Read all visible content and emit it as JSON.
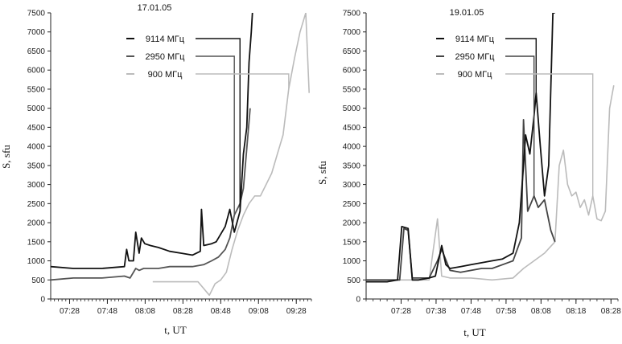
{
  "chart_data": [
    {
      "type": "line",
      "title": "17.01.05",
      "xlabel": "t, UT",
      "ylabel": "S, sfu",
      "ylim": [
        0,
        7500
      ],
      "yticks": [
        0,
        500,
        1000,
        1500,
        2000,
        2500,
        3000,
        3500,
        4000,
        4500,
        5000,
        5500,
        6000,
        6500,
        7000,
        7500
      ],
      "xlim": [
        7.3,
        9.6
      ],
      "xticks": [
        7.4667,
        7.8,
        8.1333,
        8.4667,
        8.8,
        9.1333,
        9.4667
      ],
      "xtick_labels": [
        "07:28",
        "07:48",
        "08:08",
        "08:28",
        "08:48",
        "09:08",
        "09:28"
      ],
      "legend_position": "top-center",
      "series": [
        {
          "name": "9114 МГц",
          "color": "#111111",
          "x": [
            7.3,
            7.5,
            7.75,
            7.95,
            7.97,
            7.99,
            8.03,
            8.05,
            8.08,
            8.1,
            8.13,
            8.18,
            8.25,
            8.35,
            8.45,
            8.55,
            8.62,
            8.63,
            8.65,
            8.72,
            8.76,
            8.8,
            8.84,
            8.88,
            8.92,
            8.97,
            9.0,
            9.03,
            9.05,
            9.07,
            9.08
          ],
          "values": [
            850,
            800,
            800,
            850,
            1300,
            1000,
            1000,
            1750,
            1200,
            1600,
            1450,
            1400,
            1350,
            1250,
            1200,
            1150,
            1250,
            2350,
            1400,
            1450,
            1500,
            1700,
            1900,
            2350,
            1750,
            2300,
            3800,
            4500,
            6200,
            7000,
            7500
          ]
        },
        {
          "name": "2950 МГц",
          "color": "#555555",
          "x": [
            7.3,
            7.5,
            7.75,
            7.95,
            8.0,
            8.05,
            8.08,
            8.12,
            8.25,
            8.35,
            8.45,
            8.55,
            8.65,
            8.72,
            8.78,
            8.84,
            8.88,
            8.92,
            8.97,
            9.0,
            9.04,
            9.06
          ],
          "values": [
            500,
            550,
            550,
            600,
            550,
            800,
            750,
            800,
            800,
            850,
            850,
            850,
            900,
            1000,
            1100,
            1300,
            1600,
            2200,
            2500,
            2900,
            4300,
            5000
          ]
        },
        {
          "name": "900 МГц",
          "color": "#bbbbbb",
          "x": [
            8.2,
            8.3,
            8.45,
            8.6,
            8.7,
            8.75,
            8.8,
            8.85,
            8.9,
            8.95,
            9.0,
            9.05,
            9.1,
            9.15,
            9.2,
            9.25,
            9.3,
            9.35,
            9.4,
            9.45,
            9.5,
            9.55,
            9.58
          ],
          "values": [
            450,
            450,
            450,
            450,
            100,
            400,
            500,
            700,
            1300,
            1800,
            2200,
            2500,
            2700,
            2700,
            3000,
            3300,
            3800,
            4300,
            5500,
            6300,
            7000,
            7500,
            5400
          ]
        }
      ]
    },
    {
      "type": "line",
      "title": "19.01.05",
      "xlabel": "t, UT",
      "ylabel": "S, sfu",
      "ylim": [
        0,
        7500
      ],
      "yticks": [
        0,
        500,
        1000,
        1500,
        2000,
        2500,
        3000,
        3500,
        4000,
        4500,
        5000,
        5500,
        6000,
        6500,
        7000,
        7500
      ],
      "xlim": [
        7.3,
        8.5
      ],
      "xticks": [
        7.4667,
        7.6333,
        7.8,
        7.9667,
        8.1333,
        8.3,
        8.4667
      ],
      "xtick_labels": [
        "07:28",
        "07:38",
        "07:48",
        "07:58",
        "08:08",
        "08:18",
        "08:28"
      ],
      "legend_position": "top-center",
      "series": [
        {
          "name": "9114 МГц",
          "color": "#111111",
          "x": [
            7.3,
            7.4,
            7.45,
            7.47,
            7.5,
            7.52,
            7.55,
            7.6,
            7.63,
            7.66,
            7.68,
            7.7,
            7.75,
            7.8,
            7.85,
            7.9,
            7.95,
            8.0,
            8.03,
            8.05,
            8.06,
            8.08,
            8.1,
            8.11,
            8.13,
            8.15,
            8.17,
            8.19,
            8.2
          ],
          "values": [
            450,
            450,
            500,
            1900,
            1850,
            500,
            500,
            550,
            600,
            1400,
            900,
            800,
            850,
            900,
            950,
            1000,
            1050,
            1200,
            2000,
            3500,
            4300,
            3800,
            4800,
            5400,
            4000,
            2700,
            3500,
            7500,
            7500
          ]
        },
        {
          "name": "2950 МГц",
          "color": "#444444",
          "x": [
            7.3,
            7.4,
            7.46,
            7.48,
            7.5,
            7.52,
            7.55,
            7.6,
            7.64,
            7.66,
            7.7,
            7.75,
            7.8,
            7.85,
            7.9,
            7.95,
            8.0,
            8.04,
            8.05,
            8.07,
            8.1,
            8.12,
            8.15,
            8.18,
            8.2
          ],
          "values": [
            500,
            500,
            500,
            1850,
            1800,
            550,
            550,
            550,
            1000,
            1300,
            750,
            700,
            750,
            800,
            800,
            900,
            1000,
            1600,
            4700,
            2300,
            2700,
            2400,
            2600,
            1800,
            1500
          ]
        },
        {
          "name": "900 МГц",
          "color": "#bbbbbb",
          "x": [
            7.3,
            7.4,
            7.5,
            7.6,
            7.64,
            7.66,
            7.7,
            7.8,
            7.9,
            8.0,
            8.05,
            8.1,
            8.15,
            8.2,
            8.22,
            8.24,
            8.26,
            8.28,
            8.3,
            8.32,
            8.34,
            8.36,
            8.38,
            8.4,
            8.42,
            8.44,
            8.46,
            8.48
          ],
          "values": [
            500,
            500,
            500,
            500,
            2100,
            600,
            550,
            550,
            500,
            550,
            800,
            1000,
            1200,
            1500,
            3500,
            3900,
            3000,
            2700,
            2800,
            2400,
            2600,
            2200,
            2700,
            2100,
            2050,
            2300,
            5000,
            5600
          ]
        }
      ]
    }
  ]
}
